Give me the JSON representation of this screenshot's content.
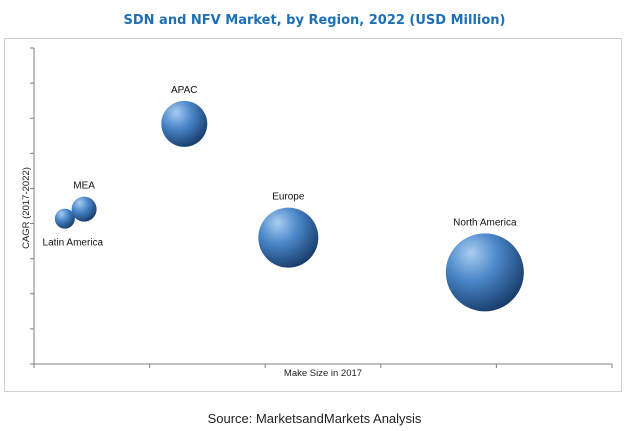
{
  "chart_data": {
    "type": "bubble",
    "title": "SDN and NFV Market, by Region, 2022 (USD Million)",
    "xlabel": "Make Size in 2017",
    "ylabel": "CAGR (2017-2022)",
    "source": "Source: MarketsandMarkets Analysis",
    "grid": false,
    "axis_ticks": true,
    "colors": {
      "bubble_light": "#a9cdf2",
      "bubble_mid": "#4a86c8",
      "bubble_dark": "#163a68",
      "title": "#1f6fb5"
    },
    "points": [
      {
        "label": "Latin America",
        "x": 0.8,
        "y": 4.6,
        "size": 1.0
      },
      {
        "label": "MEA",
        "x": 1.3,
        "y": 4.9,
        "size": 1.25
      },
      {
        "label": "APAC",
        "x": 3.9,
        "y": 7.6,
        "size": 2.3
      },
      {
        "label": "Europe",
        "x": 6.6,
        "y": 4.0,
        "size": 3.0
      },
      {
        "label": "North America",
        "x": 11.7,
        "y": 2.9,
        "size": 3.9
      }
    ],
    "xlim": [
      0,
      15
    ],
    "ylim": [
      0,
      10
    ]
  }
}
